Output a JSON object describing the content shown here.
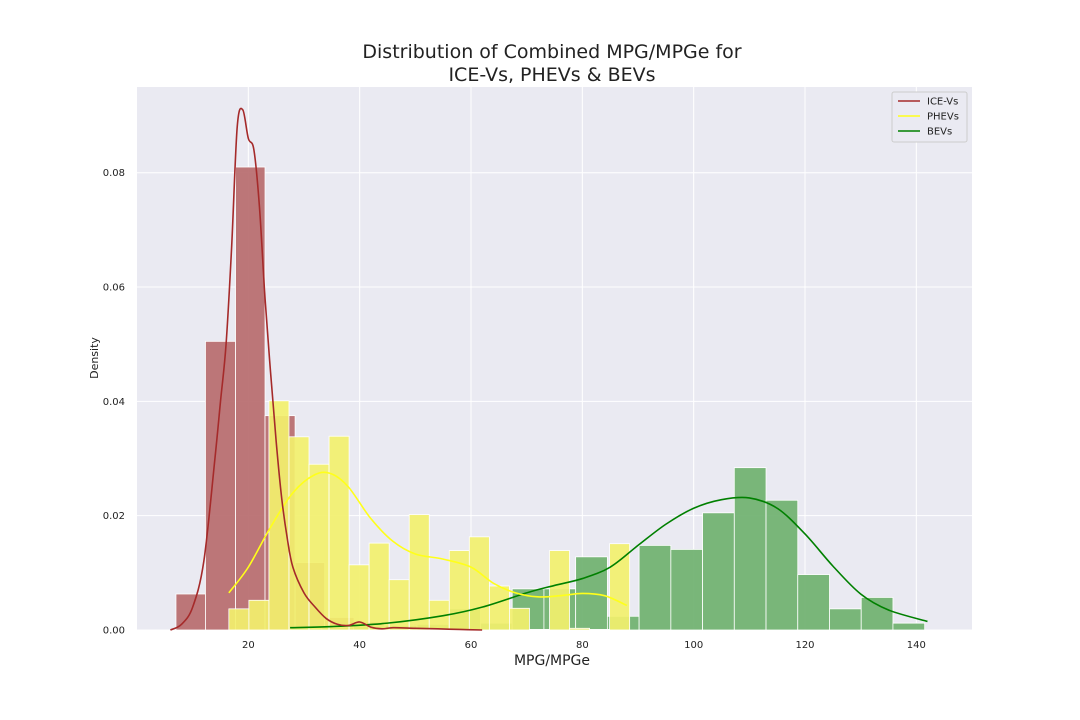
{
  "chart_data": {
    "type": "bar",
    "title_line1": "Distribution of Combined MPG/MPGe for",
    "title_line2": "ICE-Vs, PHEVs & BEVs",
    "xlabel": "MPG/MPGe",
    "ylabel": "Density",
    "xlim": [
      0,
      150
    ],
    "ylim": [
      0,
      0.095
    ],
    "x_ticks": [
      20,
      40,
      60,
      80,
      100,
      120,
      140
    ],
    "y_ticks": [
      0.0,
      0.02,
      0.04,
      0.06,
      0.08
    ],
    "y_tick_labels": [
      "0.00",
      "0.02",
      "0.04",
      "0.06",
      "0.08"
    ],
    "grid": true,
    "legend_position": "top-right",
    "series": [
      {
        "name": "ICE-Vs",
        "line_color": "#a52a2a",
        "bar_color": "#b76b6e",
        "bin_edges": [
          7,
          12.3,
          17.7,
          23,
          28.4,
          33.7,
          39,
          44.4,
          49.7,
          55,
          60.4
        ],
        "values": [
          0.0063,
          0.0505,
          0.081,
          0.0375,
          0.0118,
          0.0022,
          0.0014,
          0.0005,
          0.001,
          0.0003
        ],
        "kde_x": [
          6,
          8,
          10,
          12,
          14,
          15,
          16,
          17,
          18,
          19,
          20,
          21,
          22,
          23,
          24,
          25,
          26,
          27,
          28,
          30,
          32,
          34,
          36,
          38,
          40,
          42,
          44,
          46,
          50,
          54,
          58,
          62
        ],
        "kde_y": [
          0.0,
          0.001,
          0.004,
          0.012,
          0.03,
          0.04,
          0.05,
          0.067,
          0.088,
          0.091,
          0.086,
          0.084,
          0.074,
          0.058,
          0.045,
          0.033,
          0.023,
          0.016,
          0.011,
          0.0065,
          0.004,
          0.002,
          0.001,
          0.0008,
          0.0014,
          0.0005,
          0.0002,
          0.0004,
          0.0003,
          0.0002,
          0.0001,
          0.0
        ]
      },
      {
        "name": "PHEVs",
        "line_color": "#ffff1a",
        "bar_color": "#f2f06e",
        "bin_edges": [
          16.5,
          20.1,
          23.7,
          27.3,
          30.9,
          34.5,
          38.1,
          41.7,
          45.3,
          48.9,
          52.5,
          56.1,
          59.7,
          63.3,
          66.9,
          70.5,
          74.1,
          77.7,
          81.3,
          84.9,
          88.5
        ],
        "values": [
          0.0037,
          0.0052,
          0.0401,
          0.0338,
          0.029,
          0.0339,
          0.0114,
          0.0152,
          0.0088,
          0.0202,
          0.0052,
          0.0139,
          0.0163,
          0.0077,
          0.0038,
          0.0001,
          0.0139,
          0.0003,
          0.0001,
          0.0151
        ],
        "kde_x": [
          16.5,
          20,
          24,
          28,
          32,
          35,
          38,
          42,
          46,
          50,
          55,
          60,
          64,
          68,
          72,
          76,
          80,
          84,
          88
        ],
        "kde_y": [
          0.0065,
          0.011,
          0.018,
          0.024,
          0.0272,
          0.0273,
          0.025,
          0.0195,
          0.0155,
          0.0133,
          0.0124,
          0.011,
          0.0082,
          0.0065,
          0.0058,
          0.006,
          0.0064,
          0.006,
          0.0043
        ]
      },
      {
        "name": "BEVs",
        "line_color": "#008000",
        "bar_color": "#6fb16f",
        "bin_edges": [
          27.5,
          33.2,
          38.9,
          44.6,
          50.3,
          56,
          61.7,
          67.4,
          73.1,
          78.8,
          84.5,
          90.2,
          95.9,
          101.6,
          107.3,
          113,
          118.7,
          124.4,
          130.1,
          135.8,
          141.5
        ],
        "values": [
          0.0003,
          0.0004,
          0.0007,
          0.0008,
          0.001,
          0.0037,
          0.0012,
          0.0072,
          0.0072,
          0.0128,
          0.0024,
          0.0148,
          0.0141,
          0.0205,
          0.0284,
          0.0227,
          0.0097,
          0.0037,
          0.0057,
          0.0012
        ],
        "kde_x": [
          27.5,
          35,
          45,
          55,
          62,
          70,
          75,
          80,
          85,
          90,
          95,
          100,
          105,
          110,
          115,
          120,
          125,
          130,
          135,
          142
        ],
        "kde_y": [
          0.0004,
          0.0006,
          0.0012,
          0.0025,
          0.004,
          0.0065,
          0.0078,
          0.009,
          0.011,
          0.0148,
          0.0185,
          0.0213,
          0.0228,
          0.0231,
          0.0213,
          0.0168,
          0.0112,
          0.0063,
          0.0035,
          0.0015
        ]
      }
    ]
  }
}
